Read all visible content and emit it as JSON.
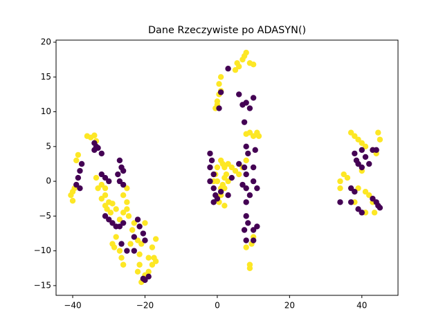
{
  "chart_data": {
    "type": "scatter",
    "title": "Dane Rzeczywiste po ADASYN()",
    "xlim": [
      -44.6,
      50.0
    ],
    "ylim": [
      -16.4,
      20.3
    ],
    "xticks": [
      {
        "value": -40,
        "label": "−40"
      },
      {
        "value": -20,
        "label": "−20"
      },
      0,
      20,
      40
    ],
    "yticks": [
      {
        "value": -15,
        "label": "−15"
      },
      {
        "value": -10,
        "label": "−10"
      },
      {
        "value": -5,
        "label": "−5"
      },
      0,
      5,
      10,
      15,
      20
    ],
    "series": [
      {
        "color": "#fde725",
        "x": [
          -38.5,
          -39,
          -40.5,
          -40,
          -40,
          -39.5,
          -36,
          -35,
          -34,
          -33.5,
          -32,
          -31,
          -31,
          -32,
          -31,
          -30,
          -30.5,
          -29.5,
          -29,
          -28,
          -27,
          -26,
          -25,
          -25,
          -26,
          -25,
          -24.5,
          -23,
          -23.5,
          -28,
          -29,
          -28.5,
          -27,
          -26.5,
          -26,
          -24,
          -22,
          -21,
          -21.5,
          -21.5,
          -22,
          -21,
          -20,
          -19,
          -18,
          -17.5,
          -17,
          -19,
          -18,
          -17,
          -20,
          -33,
          -33.5,
          -0.5,
          0,
          0,
          0.5,
          1,
          0.5,
          1,
          5,
          6,
          7,
          8,
          9,
          10,
          5.5,
          7.5,
          -1,
          -0.5,
          0,
          1,
          1.5,
          2,
          2.5,
          3,
          2,
          1,
          0.5,
          2,
          3,
          4,
          5,
          6,
          1,
          0,
          2,
          1.5,
          8,
          9,
          10,
          11,
          11.5,
          8,
          9.5,
          10,
          9,
          9,
          7,
          8,
          34,
          34,
          35,
          36,
          37,
          38,
          39,
          40,
          41,
          43,
          44.5,
          45,
          44,
          39,
          40,
          41,
          42,
          43,
          43.5,
          41,
          38
        ],
        "values": [
          3.8,
          3,
          -2,
          -2.8,
          -1.5,
          -1,
          6.5,
          6.3,
          6.6,
          5.8,
          -0.5,
          -1,
          -2,
          -2.5,
          -3.5,
          -3,
          -4,
          -4.5,
          -3.2,
          -4,
          -5.5,
          -4.5,
          -4,
          -3,
          -2,
          -1,
          -5,
          -6,
          -7,
          -8,
          -9,
          -9.5,
          -10,
          -11,
          -12,
          -9,
          -8.5,
          -9,
          -10.5,
          -12,
          -13,
          -14.5,
          -13.5,
          -13,
          -12,
          -11,
          -11.5,
          -11,
          -9.5,
          -8.3,
          -6,
          -1,
          0.5,
          10.5,
          11,
          11.5,
          12.5,
          13,
          14,
          15,
          16,
          16.5,
          17.5,
          18.5,
          17,
          16.8,
          17,
          18,
          0,
          1,
          2,
          3,
          2.5,
          2,
          1,
          0,
          -1,
          -2,
          -3,
          -3.5,
          2.5,
          2,
          1.5,
          1,
          -1,
          0,
          0.5,
          -0.5,
          6.8,
          7,
          6.5,
          7,
          6.5,
          -9.5,
          -9,
          -8,
          -12,
          -12.5,
          2,
          3,
          0,
          -1,
          1,
          0.5,
          7,
          6.5,
          6,
          5.5,
          5,
          4.5,
          7,
          6,
          4,
          -1,
          1.5,
          -1.5,
          -2,
          -3,
          -4.5,
          -4.5,
          -3
        ]
      },
      {
        "color": "#440154",
        "x": [
          -38,
          -38.5,
          -39,
          -38,
          -34,
          -33.5,
          -33,
          -32,
          -32,
          -31,
          -30,
          -27,
          -26.5,
          -26,
          -27.5,
          -27,
          -26,
          -31,
          -30,
          -29,
          -28,
          -27,
          -26,
          -26.5,
          -25,
          -23,
          -23,
          -22,
          -21.5,
          -20.5,
          -20,
          -20.5,
          -20,
          -19,
          -37.5,
          -34,
          -2,
          -1.5,
          -2,
          -1,
          -2,
          -1,
          -0.5,
          -1,
          0,
          1,
          3,
          0.5,
          1,
          3,
          6,
          7,
          8,
          9,
          10,
          7.5,
          8,
          8.5,
          7.5,
          6,
          8,
          7,
          8,
          9,
          8,
          8,
          8.5,
          7.5,
          8,
          10,
          10,
          11,
          10.5,
          10,
          11,
          10,
          4,
          37,
          38,
          38.5,
          39,
          40,
          38,
          37,
          40,
          41,
          42,
          43,
          44,
          39,
          40,
          43,
          44,
          44.5,
          45,
          34
        ],
        "values": [
          1.5,
          0.5,
          -0.5,
          -1,
          5.5,
          5,
          4.8,
          4,
          1,
          0.5,
          0,
          3,
          2,
          1.5,
          1,
          0,
          -0.5,
          -5,
          -5.5,
          -6,
          -6.5,
          -6.5,
          -6,
          -9,
          -10,
          -8,
          -10,
          -5.5,
          -6.5,
          -7.5,
          -8.5,
          -14,
          -14.2,
          -13.7,
          2.5,
          4.5,
          4,
          3,
          2,
          1,
          0,
          -1,
          -2,
          -3,
          -2.5,
          -1.5,
          -2,
          10.5,
          12.8,
          16.2,
          12.5,
          11,
          11.3,
          10.5,
          12,
          8.5,
          5,
          4,
          2,
          2.5,
          1,
          -0.5,
          -1,
          -2,
          -3,
          -5,
          -6,
          -7,
          -8.5,
          -7,
          -8.5,
          -6.5,
          4.5,
          0,
          -1,
          2,
          0.5,
          -3,
          4,
          3,
          2.5,
          2,
          -1.5,
          -1,
          4.5,
          3.5,
          2.5,
          4.5,
          4.5,
          -4,
          -4.5,
          -2.5,
          -3,
          -3.5,
          -3.8,
          -3
        ]
      }
    ]
  }
}
